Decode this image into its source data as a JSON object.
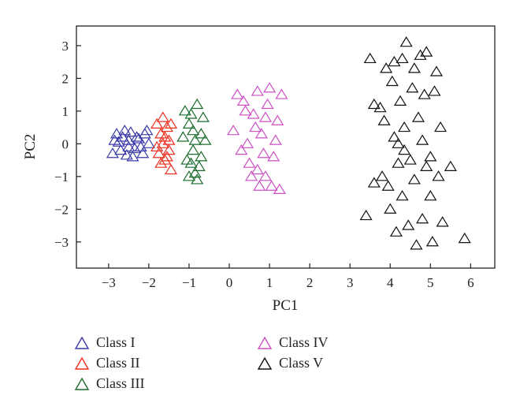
{
  "chart_data": {
    "type": "scatter",
    "title": "",
    "xlabel": "PC1",
    "ylabel": "PC2",
    "xlim": [
      -3.8,
      6.6
    ],
    "ylim": [
      -3.8,
      3.6
    ],
    "xticks": [
      -3,
      -2,
      -1,
      0,
      1,
      2,
      3,
      4,
      5,
      6
    ],
    "xtick_labels": [
      "−3",
      "−2",
      "−1",
      "0",
      "1",
      "2",
      "3",
      "4",
      "5",
      "6"
    ],
    "yticks": [
      -3,
      -2,
      -1,
      0,
      1,
      2,
      3
    ],
    "ytick_labels": [
      "−3",
      "−2",
      "−1",
      "0",
      "1",
      "2",
      "3"
    ],
    "grid": false,
    "legend_position": "bottom",
    "series": [
      {
        "name": "Class I",
        "color": "#3a3aa8",
        "points": [
          [
            -2.8,
            0.3
          ],
          [
            -2.7,
            -0.2
          ],
          [
            -2.6,
            0.4
          ],
          [
            -2.5,
            0.1
          ],
          [
            -2.4,
            -0.4
          ],
          [
            -2.3,
            0.2
          ],
          [
            -2.2,
            -0.1
          ],
          [
            -2.1,
            0.3
          ],
          [
            -2.0,
            0.0
          ],
          [
            -2.9,
            -0.3
          ],
          [
            -2.75,
            0.05
          ],
          [
            -2.55,
            -0.35
          ],
          [
            -2.45,
            0.35
          ],
          [
            -2.35,
            -0.15
          ],
          [
            -2.25,
            0.15
          ],
          [
            -2.15,
            -0.3
          ],
          [
            -2.05,
            0.4
          ],
          [
            -2.65,
            0.2
          ],
          [
            -2.85,
            0.1
          ],
          [
            -2.5,
            -0.1
          ]
        ]
      },
      {
        "name": "Class II",
        "color": "#ee2d1f",
        "points": [
          [
            -1.8,
            0.6
          ],
          [
            -1.7,
            -0.6
          ],
          [
            -1.6,
            0.2
          ],
          [
            -1.5,
            -0.2
          ],
          [
            -1.65,
            0.8
          ],
          [
            -1.75,
            -0.3
          ],
          [
            -1.55,
            0.5
          ],
          [
            -1.45,
            -0.8
          ],
          [
            -1.6,
            -0.5
          ],
          [
            -1.7,
            0.3
          ],
          [
            -1.5,
            0.1
          ],
          [
            -1.8,
            -0.1
          ],
          [
            -1.55,
            -0.4
          ],
          [
            -1.65,
            0.0
          ],
          [
            -1.45,
            0.6
          ]
        ]
      },
      {
        "name": "Class III",
        "color": "#1a6b2c",
        "points": [
          [
            -1.1,
            1.0
          ],
          [
            -1.0,
            0.6
          ],
          [
            -0.9,
            -0.2
          ],
          [
            -0.8,
            -1.1
          ],
          [
            -0.7,
            0.3
          ],
          [
            -1.05,
            -0.5
          ],
          [
            -0.95,
            0.9
          ],
          [
            -0.85,
            0.1
          ],
          [
            -0.75,
            -0.7
          ],
          [
            -0.6,
            0.1
          ],
          [
            -1.0,
            -1.0
          ],
          [
            -0.9,
            0.4
          ],
          [
            -0.8,
            1.2
          ],
          [
            -0.7,
            -0.4
          ],
          [
            -1.15,
            0.2
          ],
          [
            -0.85,
            -0.9
          ],
          [
            -0.65,
            0.8
          ],
          [
            -0.95,
            -0.6
          ]
        ]
      },
      {
        "name": "Class IV",
        "color": "#cc4fc4",
        "points": [
          [
            0.1,
            0.4
          ],
          [
            0.2,
            1.5
          ],
          [
            0.3,
            -0.2
          ],
          [
            0.4,
            1.0
          ],
          [
            0.5,
            -0.6
          ],
          [
            0.6,
            0.9
          ],
          [
            0.7,
            1.6
          ],
          [
            0.75,
            -1.3
          ],
          [
            0.8,
            0.3
          ],
          [
            0.9,
            -1.0
          ],
          [
            1.0,
            1.7
          ],
          [
            1.1,
            -0.4
          ],
          [
            1.2,
            0.7
          ],
          [
            1.3,
            1.5
          ],
          [
            1.25,
            -1.4
          ],
          [
            0.45,
            0.0
          ],
          [
            0.55,
            -1.0
          ],
          [
            0.65,
            0.5
          ],
          [
            0.85,
            -0.3
          ],
          [
            0.95,
            1.2
          ],
          [
            1.05,
            -1.3
          ],
          [
            1.15,
            0.1
          ],
          [
            0.35,
            1.3
          ],
          [
            0.7,
            -0.8
          ],
          [
            0.9,
            0.8
          ]
        ]
      },
      {
        "name": "Class V",
        "color": "#111111",
        "points": [
          [
            3.4,
            -2.2
          ],
          [
            3.5,
            2.6
          ],
          [
            3.6,
            1.2
          ],
          [
            3.6,
            -1.2
          ],
          [
            3.75,
            1.1
          ],
          [
            3.8,
            -1.0
          ],
          [
            3.85,
            0.7
          ],
          [
            3.9,
            2.3
          ],
          [
            3.95,
            -1.3
          ],
          [
            4.0,
            -2.0
          ],
          [
            4.05,
            1.9
          ],
          [
            4.1,
            2.5
          ],
          [
            4.1,
            0.2
          ],
          [
            4.15,
            -2.7
          ],
          [
            4.2,
            -0.6
          ],
          [
            4.25,
            1.3
          ],
          [
            4.3,
            2.6
          ],
          [
            4.3,
            -1.6
          ],
          [
            4.35,
            0.5
          ],
          [
            4.4,
            3.1
          ],
          [
            4.45,
            -2.5
          ],
          [
            4.5,
            -0.5
          ],
          [
            4.55,
            1.7
          ],
          [
            4.6,
            2.3
          ],
          [
            4.6,
            -1.1
          ],
          [
            4.65,
            -3.1
          ],
          [
            4.7,
            0.8
          ],
          [
            4.75,
            2.7
          ],
          [
            4.8,
            -2.3
          ],
          [
            4.85,
            1.5
          ],
          [
            4.9,
            2.8
          ],
          [
            4.9,
            -0.7
          ],
          [
            5.0,
            -1.6
          ],
          [
            5.05,
            -3.0
          ],
          [
            5.1,
            1.6
          ],
          [
            5.15,
            2.2
          ],
          [
            5.2,
            -1.0
          ],
          [
            5.25,
            0.5
          ],
          [
            5.3,
            -2.4
          ],
          [
            5.5,
            -0.7
          ],
          [
            5.85,
            -2.9
          ],
          [
            4.2,
            0.0
          ],
          [
            4.8,
            0.1
          ],
          [
            5.0,
            -0.4
          ],
          [
            4.35,
            -0.2
          ]
        ]
      }
    ]
  },
  "legend": [
    {
      "label": "Class I",
      "color": "#3a3aa8"
    },
    {
      "label": "Class II",
      "color": "#ee2d1f"
    },
    {
      "label": "Class III",
      "color": "#1a6b2c"
    },
    {
      "label": "Class IV",
      "color": "#cc4fc4"
    },
    {
      "label": "Class V",
      "color": "#111111"
    }
  ]
}
